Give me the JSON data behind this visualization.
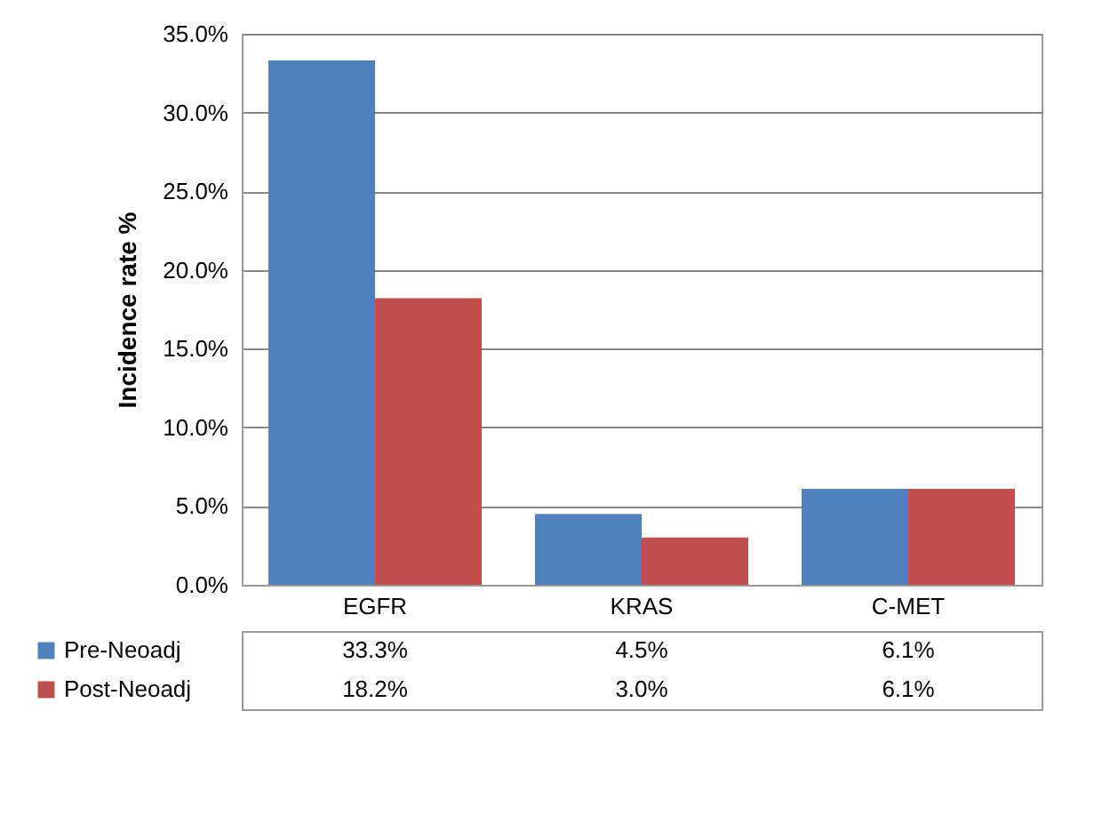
{
  "chart_data": {
    "type": "bar",
    "ylabel": "Incidence rate %",
    "categories": [
      "EGFR",
      "KRAS",
      "C-MET"
    ],
    "series": [
      {
        "name": "Pre-Neoadj",
        "color": "#4f81bd",
        "values": [
          33.3,
          4.5,
          6.1
        ],
        "value_labels": [
          "33.3%",
          "4.5%",
          "6.1%"
        ]
      },
      {
        "name": "Post-Neoadj",
        "color": "#c0504d",
        "values": [
          18.2,
          3.0,
          6.1
        ],
        "value_labels": [
          "18.2%",
          "3.0%",
          "6.1%"
        ]
      }
    ],
    "ylim": [
      0,
      35
    ],
    "yticks": [
      {
        "value": 0,
        "label": "0.0%"
      },
      {
        "value": 5,
        "label": "5.0%"
      },
      {
        "value": 10,
        "label": "10.0%"
      },
      {
        "value": 15,
        "label": "15.0%"
      },
      {
        "value": 20,
        "label": "20.0%"
      },
      {
        "value": 25,
        "label": "25.0%"
      },
      {
        "value": 30,
        "label": "30.0%"
      },
      {
        "value": 35,
        "label": "35.0%"
      }
    ],
    "grid": true,
    "legend": "bottom left"
  }
}
